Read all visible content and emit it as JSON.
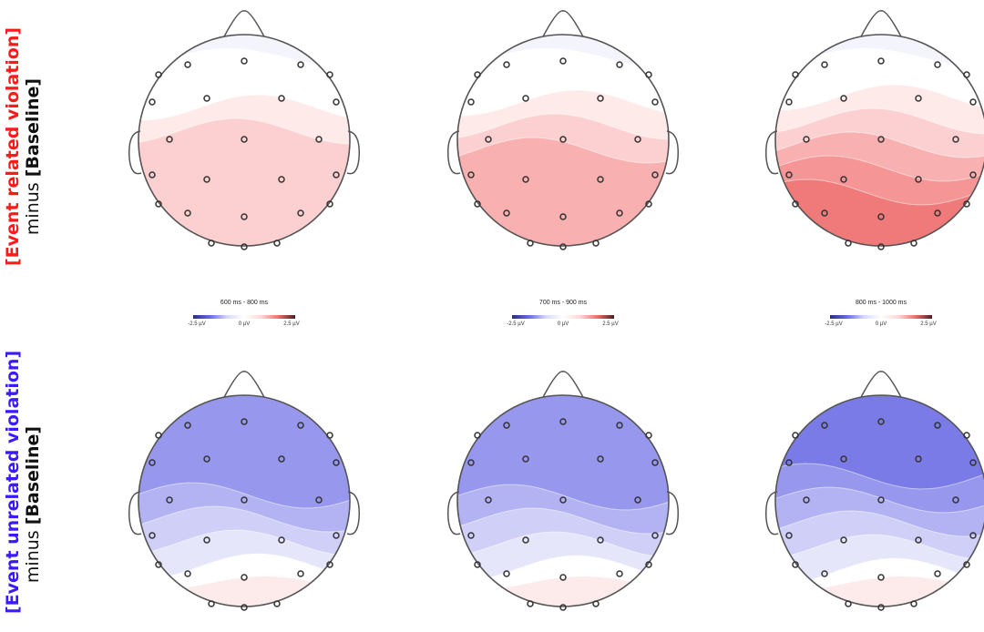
{
  "rows": [
    {
      "label_primary": "[Event related violation]",
      "label_primary_color": "#ff1a1a",
      "label_minus": "minus",
      "label_baseline": "[Baseline]",
      "panels": [
        {
          "window": "600 ms - 800 ms",
          "intensity": 0.3
        },
        {
          "window": "700 ms - 900 ms",
          "intensity": 0.55
        },
        {
          "window": "800 ms - 1000 ms",
          "intensity": 0.85
        }
      ]
    },
    {
      "label_primary": "[Event unrelated violation]",
      "label_primary_color": "#3a1aff",
      "label_minus": "minus",
      "label_baseline": "[Baseline]",
      "panels": [
        {
          "intensity": -0.6
        },
        {
          "intensity": -0.7
        },
        {
          "intensity": -0.85
        }
      ]
    }
  ],
  "colorbar": {
    "min_label": "-2.5 µV",
    "mid_label": "0 µV",
    "max_label": "2.5 µV",
    "colors": [
      "#2b2b80",
      "#6a6ae8",
      "#d8d8fa",
      "#ffffff",
      "#ffd6d6",
      "#f07070",
      "#4a1f1f"
    ]
  },
  "colors": {
    "head_stroke": "#555555",
    "electrode_stroke": "#333333"
  }
}
